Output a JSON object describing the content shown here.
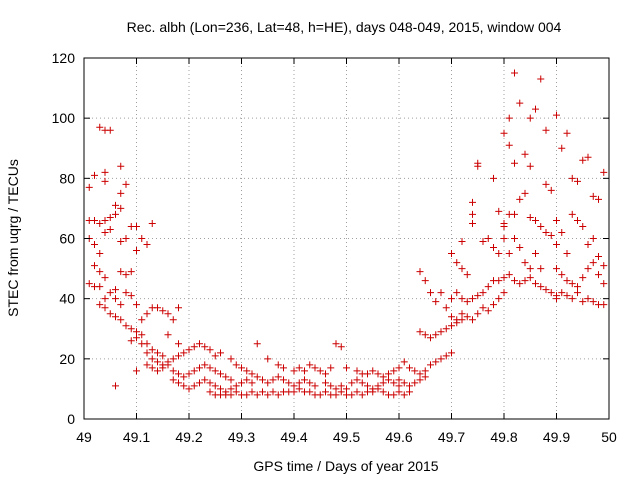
{
  "chart_data": {
    "type": "scatter",
    "title": "Rec. albh (Lon=236, Lat=48, h=HE), days 048-049, 2015, window 004",
    "xlabel": "GPS time / Days of year 2015",
    "ylabel": "STEC from uqrg / TECUs",
    "xlim": [
      49,
      50
    ],
    "ylim": [
      0,
      120
    ],
    "xticks": [
      49,
      49.1,
      49.2,
      49.3,
      49.4,
      49.5,
      49.6,
      49.7,
      49.8,
      49.9,
      50
    ],
    "xtick_labels": [
      "49",
      "49.1",
      "49.2",
      "49.3",
      "49.4",
      "49.5",
      "49.6",
      "49.7",
      "49.8",
      "49.9",
      "50"
    ],
    "yticks": [
      0,
      20,
      40,
      60,
      80,
      100,
      120
    ],
    "ytick_labels": [
      "0",
      "20",
      "40",
      "60",
      "80",
      "100",
      "120"
    ],
    "grid": true,
    "marker": "plus",
    "color": "#cc0000",
    "points": [
      [
        49.01,
        77
      ],
      [
        49.02,
        81
      ],
      [
        49.03,
        97
      ],
      [
        49.04,
        96
      ],
      [
        49.05,
        96
      ],
      [
        49.04,
        82
      ],
      [
        49.04,
        79
      ],
      [
        49.07,
        84
      ],
      [
        49.08,
        78
      ],
      [
        49.06,
        71
      ],
      [
        49.07,
        70
      ],
      [
        49.07,
        75
      ],
      [
        49.01,
        66
      ],
      [
        49.02,
        66
      ],
      [
        49.03,
        65
      ],
      [
        49.04,
        66
      ],
      [
        49.05,
        67
      ],
      [
        49.06,
        68
      ],
      [
        49.01,
        60
      ],
      [
        49.02,
        58
      ],
      [
        49.03,
        55
      ],
      [
        49.04,
        62
      ],
      [
        49.05,
        63
      ],
      [
        49.07,
        59
      ],
      [
        49.08,
        60
      ],
      [
        49.09,
        64
      ],
      [
        49.1,
        64
      ],
      [
        49.02,
        51
      ],
      [
        49.03,
        49
      ],
      [
        49.04,
        47
      ],
      [
        49.06,
        43
      ],
      [
        49.07,
        49
      ],
      [
        49.08,
        48
      ],
      [
        49.09,
        49
      ],
      [
        49.1,
        56
      ],
      [
        49.11,
        60
      ],
      [
        49.12,
        58
      ],
      [
        49.13,
        65
      ],
      [
        49.01,
        45
      ],
      [
        49.02,
        44
      ],
      [
        49.03,
        44
      ],
      [
        49.04,
        40
      ],
      [
        49.05,
        42
      ],
      [
        49.06,
        40
      ],
      [
        49.07,
        38
      ],
      [
        49.08,
        42
      ],
      [
        49.09,
        41
      ],
      [
        49.1,
        38
      ],
      [
        49.03,
        38
      ],
      [
        49.04,
        37
      ],
      [
        49.05,
        35
      ],
      [
        49.06,
        34
      ],
      [
        49.07,
        33
      ],
      [
        49.08,
        31
      ],
      [
        49.09,
        30
      ],
      [
        49.11,
        33
      ],
      [
        49.12,
        35
      ],
      [
        49.13,
        37
      ],
      [
        49.14,
        37
      ],
      [
        49.15,
        36
      ],
      [
        49.16,
        35
      ],
      [
        49.17,
        33
      ],
      [
        49.18,
        37
      ],
      [
        49.06,
        11
      ],
      [
        49.09,
        26
      ],
      [
        49.1,
        27
      ],
      [
        49.11,
        28
      ],
      [
        49.12,
        25
      ],
      [
        49.13,
        23
      ],
      [
        49.14,
        22
      ],
      [
        49.15,
        21
      ],
      [
        49.16,
        28
      ],
      [
        49.18,
        25
      ],
      [
        49.1,
        16
      ],
      [
        49.1,
        29
      ],
      [
        49.11,
        25
      ],
      [
        49.12,
        22
      ],
      [
        49.13,
        20
      ],
      [
        49.14,
        19
      ],
      [
        49.15,
        18
      ],
      [
        49.16,
        19
      ],
      [
        49.17,
        20
      ],
      [
        49.18,
        21
      ],
      [
        49.19,
        22
      ],
      [
        49.2,
        23
      ],
      [
        49.21,
        24
      ],
      [
        49.22,
        25
      ],
      [
        49.23,
        24
      ],
      [
        49.24,
        23
      ],
      [
        49.25,
        21
      ],
      [
        49.26,
        22
      ],
      [
        49.28,
        20
      ],
      [
        49.12,
        18
      ],
      [
        49.13,
        17
      ],
      [
        49.14,
        16
      ],
      [
        49.15,
        17
      ],
      [
        49.16,
        18
      ],
      [
        49.17,
        16
      ],
      [
        49.18,
        15
      ],
      [
        49.19,
        14
      ],
      [
        49.2,
        15
      ],
      [
        49.21,
        16
      ],
      [
        49.22,
        17
      ],
      [
        49.23,
        18
      ],
      [
        49.24,
        17
      ],
      [
        49.25,
        16
      ],
      [
        49.26,
        15
      ],
      [
        49.27,
        14
      ],
      [
        49.28,
        13
      ],
      [
        49.17,
        13
      ],
      [
        49.18,
        12
      ],
      [
        49.19,
        11
      ],
      [
        49.2,
        10
      ],
      [
        49.21,
        11
      ],
      [
        49.22,
        12
      ],
      [
        49.23,
        13
      ],
      [
        49.24,
        12
      ],
      [
        49.25,
        11
      ],
      [
        49.26,
        10
      ],
      [
        49.27,
        9
      ],
      [
        49.28,
        10
      ],
      [
        49.29,
        11
      ],
      [
        49.3,
        12
      ],
      [
        49.31,
        13
      ],
      [
        49.32,
        12
      ],
      [
        49.24,
        9
      ],
      [
        49.25,
        8
      ],
      [
        49.26,
        8
      ],
      [
        49.27,
        8
      ],
      [
        49.28,
        8
      ],
      [
        49.29,
        9
      ],
      [
        49.3,
        8
      ],
      [
        49.31,
        8
      ],
      [
        49.32,
        9
      ],
      [
        49.33,
        8
      ],
      [
        49.34,
        9
      ],
      [
        49.35,
        8
      ],
      [
        49.36,
        9
      ],
      [
        49.37,
        8
      ],
      [
        49.38,
        9
      ],
      [
        49.39,
        9
      ],
      [
        49.4,
        9
      ],
      [
        49.41,
        10
      ],
      [
        49.42,
        9
      ],
      [
        49.43,
        9
      ],
      [
        49.44,
        8
      ],
      [
        49.45,
        8
      ],
      [
        49.46,
        9
      ],
      [
        49.47,
        8
      ],
      [
        49.48,
        8
      ],
      [
        49.49,
        9
      ],
      [
        49.29,
        18
      ],
      [
        49.3,
        17
      ],
      [
        49.31,
        16
      ],
      [
        49.32,
        15
      ],
      [
        49.33,
        14
      ],
      [
        49.34,
        13
      ],
      [
        49.35,
        12
      ],
      [
        49.36,
        13
      ],
      [
        49.37,
        14
      ],
      [
        49.38,
        13
      ],
      [
        49.39,
        12
      ],
      [
        49.4,
        11
      ],
      [
        49.41,
        12
      ],
      [
        49.42,
        13
      ],
      [
        49.43,
        12
      ],
      [
        49.44,
        11
      ],
      [
        49.33,
        25
      ],
      [
        49.35,
        20
      ],
      [
        49.37,
        18
      ],
      [
        49.38,
        17
      ],
      [
        49.4,
        16
      ],
      [
        49.41,
        17
      ],
      [
        49.42,
        16
      ],
      [
        49.43,
        18
      ],
      [
        49.44,
        17
      ],
      [
        49.45,
        16
      ],
      [
        49.46,
        15
      ],
      [
        49.47,
        17
      ],
      [
        49.48,
        25
      ],
      [
        49.49,
        24
      ],
      [
        49.5,
        17
      ],
      [
        49.46,
        12
      ],
      [
        49.47,
        11
      ],
      [
        49.48,
        10
      ],
      [
        49.49,
        11
      ],
      [
        49.5,
        10
      ],
      [
        49.51,
        12
      ],
      [
        49.52,
        13
      ],
      [
        49.53,
        12
      ],
      [
        49.54,
        11
      ],
      [
        49.55,
        10
      ],
      [
        49.56,
        11
      ],
      [
        49.57,
        12
      ],
      [
        49.58,
        13
      ],
      [
        49.59,
        12
      ],
      [
        49.6,
        11
      ],
      [
        49.5,
        8
      ],
      [
        49.51,
        8
      ],
      [
        49.52,
        9
      ],
      [
        49.53,
        8
      ],
      [
        49.54,
        9
      ],
      [
        49.55,
        9
      ],
      [
        49.56,
        10
      ],
      [
        49.57,
        9
      ],
      [
        49.58,
        8
      ],
      [
        49.59,
        8
      ],
      [
        49.6,
        9
      ],
      [
        49.61,
        8
      ],
      [
        49.62,
        9
      ],
      [
        49.52,
        16
      ],
      [
        49.53,
        15
      ],
      [
        49.54,
        15
      ],
      [
        49.55,
        16
      ],
      [
        49.56,
        15
      ],
      [
        49.57,
        14
      ],
      [
        49.58,
        15
      ],
      [
        49.59,
        16
      ],
      [
        49.6,
        17
      ],
      [
        49.61,
        19
      ],
      [
        49.62,
        17
      ],
      [
        49.63,
        16
      ],
      [
        49.64,
        15
      ],
      [
        49.65,
        14
      ],
      [
        49.6,
        13
      ],
      [
        49.61,
        12
      ],
      [
        49.62,
        11
      ],
      [
        49.63,
        12
      ],
      [
        49.64,
        13
      ],
      [
        49.65,
        16
      ],
      [
        49.66,
        18
      ],
      [
        49.67,
        19
      ],
      [
        49.68,
        20
      ],
      [
        49.69,
        21
      ],
      [
        49.7,
        22
      ],
      [
        49.64,
        49
      ],
      [
        49.65,
        46
      ],
      [
        49.66,
        42
      ],
      [
        49.67,
        39
      ],
      [
        49.68,
        42
      ],
      [
        49.64,
        29
      ],
      [
        49.65,
        28
      ],
      [
        49.66,
        27
      ],
      [
        49.67,
        28
      ],
      [
        49.68,
        29
      ],
      [
        49.69,
        30
      ],
      [
        49.7,
        31
      ],
      [
        49.71,
        32
      ],
      [
        49.72,
        33
      ],
      [
        49.69,
        37
      ],
      [
        49.7,
        40
      ],
      [
        49.71,
        42
      ],
      [
        49.72,
        40
      ],
      [
        49.73,
        39
      ],
      [
        49.74,
        40
      ],
      [
        49.75,
        41
      ],
      [
        49.76,
        42
      ],
      [
        49.77,
        44
      ],
      [
        49.78,
        46
      ],
      [
        49.7,
        55
      ],
      [
        49.71,
        52
      ],
      [
        49.72,
        50
      ],
      [
        49.73,
        48
      ],
      [
        49.72,
        59
      ],
      [
        49.74,
        65
      ],
      [
        49.74,
        68
      ],
      [
        49.74,
        72
      ],
      [
        49.75,
        85
      ],
      [
        49.75,
        84
      ],
      [
        49.78,
        80
      ],
      [
        49.79,
        69
      ],
      [
        49.8,
        65
      ],
      [
        49.76,
        59
      ],
      [
        49.77,
        60
      ],
      [
        49.78,
        57
      ],
      [
        49.79,
        55
      ],
      [
        49.7,
        34
      ],
      [
        49.71,
        33
      ],
      [
        49.72,
        35
      ],
      [
        49.73,
        34
      ],
      [
        49.74,
        33
      ],
      [
        49.75,
        35
      ],
      [
        49.76,
        37
      ],
      [
        49.77,
        36
      ],
      [
        49.78,
        38
      ],
      [
        49.79,
        40
      ],
      [
        49.8,
        42
      ],
      [
        49.79,
        46
      ],
      [
        49.8,
        47
      ],
      [
        49.81,
        48
      ],
      [
        49.82,
        46
      ],
      [
        49.83,
        45
      ],
      [
        49.84,
        46
      ],
      [
        49.85,
        47
      ],
      [
        49.86,
        45
      ],
      [
        49.87,
        44
      ],
      [
        49.88,
        43
      ],
      [
        49.89,
        42
      ],
      [
        49.9,
        41
      ],
      [
        49.8,
        60
      ],
      [
        49.81,
        55
      ],
      [
        49.82,
        60
      ],
      [
        49.83,
        57
      ],
      [
        49.84,
        52
      ],
      [
        49.85,
        50
      ],
      [
        49.86,
        55
      ],
      [
        49.87,
        50
      ],
      [
        49.88,
        62
      ],
      [
        49.89,
        61
      ],
      [
        49.9,
        58
      ],
      [
        49.8,
        64
      ],
      [
        49.81,
        68
      ],
      [
        49.82,
        68
      ],
      [
        49.83,
        73
      ],
      [
        49.84,
        75
      ],
      [
        49.85,
        67
      ],
      [
        49.86,
        66
      ],
      [
        49.87,
        64
      ],
      [
        49.88,
        78
      ],
      [
        49.89,
        76
      ],
      [
        49.8,
        95
      ],
      [
        49.81,
        100
      ],
      [
        49.82,
        115
      ],
      [
        49.83,
        105
      ],
      [
        49.84,
        88
      ],
      [
        49.85,
        100
      ],
      [
        49.86,
        103
      ],
      [
        49.87,
        113
      ],
      [
        49.88,
        96
      ],
      [
        49.85,
        84
      ],
      [
        49.81,
        91
      ],
      [
        49.82,
        85
      ],
      [
        49.9,
        101
      ],
      [
        49.91,
        90
      ],
      [
        49.92,
        95
      ],
      [
        49.93,
        80
      ],
      [
        49.94,
        79
      ],
      [
        49.95,
        86
      ],
      [
        49.96,
        87
      ],
      [
        49.97,
        74
      ],
      [
        49.98,
        73
      ],
      [
        49.99,
        82
      ],
      [
        49.9,
        66
      ],
      [
        49.91,
        62
      ],
      [
        49.92,
        55
      ],
      [
        49.93,
        68
      ],
      [
        49.94,
        66
      ],
      [
        49.95,
        64
      ],
      [
        49.96,
        58
      ],
      [
        49.97,
        60
      ],
      [
        49.98,
        54
      ],
      [
        49.99,
        51
      ],
      [
        49.9,
        50
      ],
      [
        49.91,
        48
      ],
      [
        49.92,
        46
      ],
      [
        49.93,
        45
      ],
      [
        49.94,
        44
      ],
      [
        49.95,
        47
      ],
      [
        49.96,
        50
      ],
      [
        49.97,
        52
      ],
      [
        49.98,
        48
      ],
      [
        49.99,
        45
      ],
      [
        49.9,
        40
      ],
      [
        49.91,
        42
      ],
      [
        49.92,
        41
      ],
      [
        49.93,
        40
      ],
      [
        49.94,
        42
      ],
      [
        49.95,
        39
      ],
      [
        49.96,
        40
      ],
      [
        49.97,
        39
      ],
      [
        49.98,
        38
      ],
      [
        49.99,
        38
      ]
    ]
  }
}
